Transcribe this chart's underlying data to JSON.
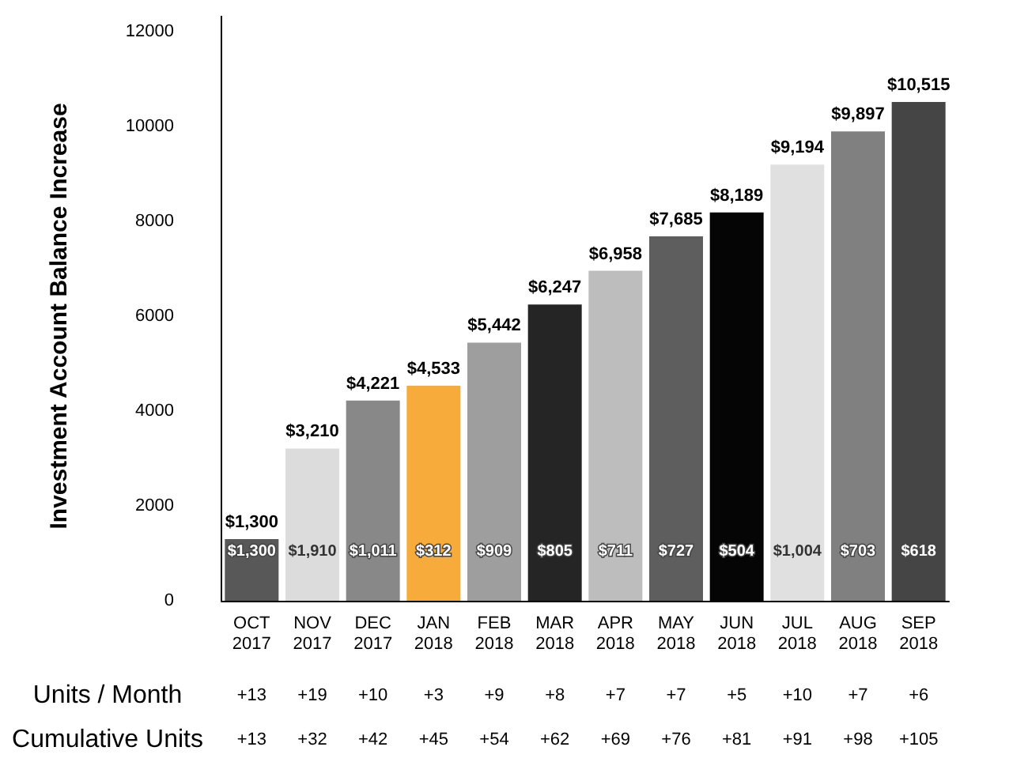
{
  "chart_data": {
    "type": "bar",
    "ylabel": "Investment Account Balance Increase",
    "categories": [
      "OCT 2017",
      "NOV 2017",
      "DEC 2017",
      "JAN 2018",
      "FEB 2018",
      "MAR 2018",
      "APR 2018",
      "MAY 2018",
      "JUN 2018",
      "JUL 2018",
      "AUG 2018",
      "SEP 2018"
    ],
    "values": [
      1300,
      3210,
      4221,
      4533,
      5442,
      6247,
      6958,
      7685,
      8189,
      9194,
      9897,
      10515
    ],
    "value_labels": [
      "$1,300",
      "$3,210",
      "$4,221",
      "$4,533",
      "$5,442",
      "$6,247",
      "$6,958",
      "$7,685",
      "$8,189",
      "$9,194",
      "$9,897",
      "$10,515"
    ],
    "colors": [
      "#585858",
      "#dcdcdc",
      "#888888",
      "#f7ab3a",
      "#9e9e9e",
      "#252525",
      "#bdbdbd",
      "#5e5e5e",
      "#050505",
      "#e0e0e0",
      "#808080",
      "#454545"
    ],
    "ylim": [
      0,
      12000
    ],
    "yticks": [
      0,
      2000,
      4000,
      6000,
      8000,
      10000,
      12000
    ],
    "grid": false,
    "annotations": [
      "$1,300",
      "$1,910",
      "$1,011",
      "$312",
      "$909",
      "$805",
      "$711",
      "$727",
      "$504",
      "$1,004",
      "$703",
      "$618",
      "Units / Month",
      "+13",
      "+19",
      "+10",
      "+3",
      "+9",
      "+8",
      "+7",
      "+7",
      "+5",
      "+10",
      "+7",
      "+6",
      "Cumulative Units",
      "+13",
      "+32",
      "+42",
      "+45",
      "+54",
      "+62",
      "+69",
      "+76",
      "+81",
      "+91",
      "+98",
      "+105"
    ]
  }
}
